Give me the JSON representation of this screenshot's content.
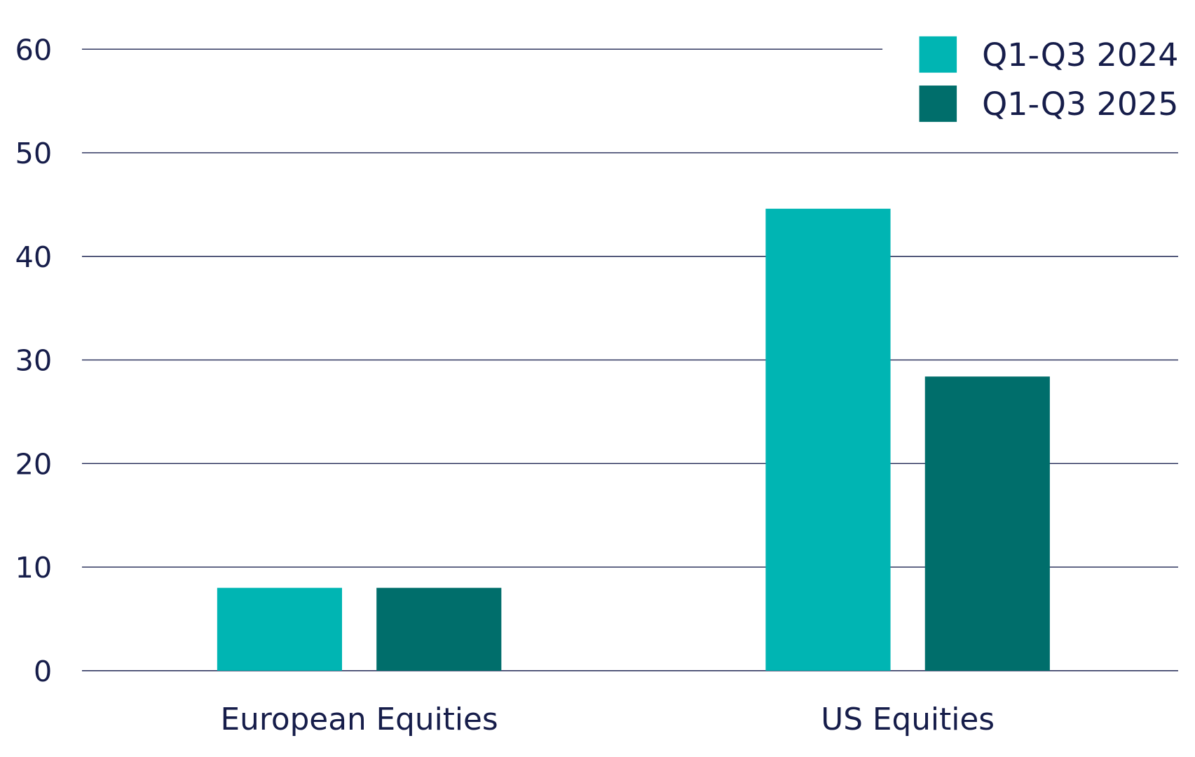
{
  "chart_data": {
    "type": "bar",
    "title": "",
    "xlabel": "",
    "ylabel": "",
    "ylim": [
      0,
      60
    ],
    "yticks": [
      0,
      10,
      20,
      30,
      40,
      50,
      60
    ],
    "grid": true,
    "legend_position": "top-right",
    "categories": [
      "European Equities",
      "US Equities"
    ],
    "series": [
      {
        "name": "Q1-Q3 2024",
        "color": "#00b5b3",
        "values": [
          8.0,
          44.6
        ]
      },
      {
        "name": "Q1-Q3 2025",
        "color": "#006e6b",
        "values": [
          8.0,
          28.4
        ]
      }
    ]
  }
}
